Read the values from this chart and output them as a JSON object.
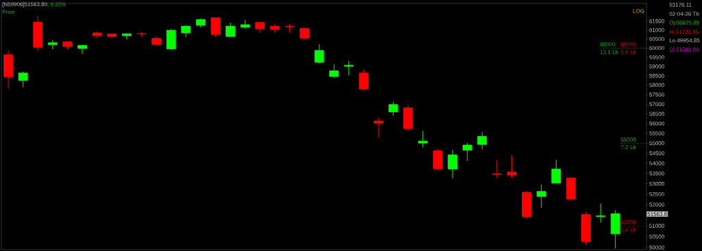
{
  "chart_data": {
    "type": "candlestick",
    "title": "[N59906]51563.80,",
    "subtitle": "0.22%",
    "categories": [
      null,
      null,
      null,
      null,
      null,
      null,
      null,
      null,
      null,
      null,
      null,
      null,
      null,
      null,
      null,
      null,
      null,
      null,
      null,
      null,
      null,
      null,
      null,
      null,
      null,
      null,
      null,
      null,
      null,
      null,
      null,
      null,
      null,
      null,
      null,
      null,
      null,
      null,
      null,
      null,
      null,
      null
    ],
    "ohlc": [
      [
        59640,
        59900,
        57840,
        58450
      ],
      [
        58250,
        58720,
        57880,
        58650
      ],
      [
        61450,
        61790,
        59840,
        60050
      ],
      [
        60190,
        60430,
        59930,
        60290
      ],
      [
        60350,
        60360,
        59930,
        60090
      ],
      [
        59990,
        60170,
        59680,
        60150
      ],
      [
        60840,
        60930,
        60540,
        60690
      ],
      [
        60780,
        60810,
        60580,
        60640
      ],
      [
        60690,
        60810,
        60490,
        60790
      ],
      [
        60800,
        60890,
        60640,
        60780
      ],
      [
        60540,
        60650,
        60100,
        60210
      ],
      [
        59950,
        61040,
        59910,
        60990
      ],
      [
        60840,
        61260,
        60610,
        61220
      ],
      [
        61270,
        61650,
        61150,
        61580
      ],
      [
        61690,
        61720,
        60640,
        60760
      ],
      [
        60640,
        61420,
        60640,
        61220
      ],
      [
        61150,
        61570,
        61060,
        61300
      ],
      [
        61430,
        61450,
        60840,
        61070
      ],
      [
        61220,
        61350,
        60850,
        61040
      ],
      [
        61210,
        61330,
        60840,
        61190
      ],
      [
        61100,
        61120,
        60490,
        60540
      ],
      [
        59230,
        60210,
        59170,
        59870
      ],
      [
        58460,
        59110,
        58420,
        58770
      ],
      [
        59020,
        59300,
        58530,
        59070
      ],
      [
        58650,
        58830,
        57730,
        57800
      ],
      [
        56130,
        56300,
        55290,
        56020
      ],
      [
        56600,
        57130,
        56400,
        56980
      ],
      [
        56810,
        56970,
        55650,
        55740
      ],
      [
        55010,
        55650,
        54790,
        55110
      ],
      [
        54620,
        54700,
        53700,
        53740
      ],
      [
        53720,
        54670,
        53270,
        54420
      ],
      [
        54650,
        55020,
        54130,
        54910
      ],
      [
        54940,
        55580,
        54700,
        55350
      ],
      [
        53490,
        54180,
        53260,
        53460
      ],
      [
        53570,
        54400,
        53320,
        53420
      ],
      [
        52590,
        52660,
        51350,
        51430
      ],
      [
        52390,
        52960,
        51850,
        52630
      ],
      [
        53030,
        54180,
        53020,
        53720
      ],
      [
        53280,
        53320,
        52240,
        52270
      ],
      [
        51530,
        51650,
        50140,
        50270
      ],
      [
        51440,
        52040,
        51150,
        51470
      ],
      [
        50625.65,
        51731.95,
        49954.85,
        51563.8
      ]
    ],
    "colors": [
      "#ff0000",
      "#00ff00",
      "#ff0000",
      "#00ff00",
      "#ff0000",
      "#00ff00",
      "#ff0000",
      "#ff0000",
      "#00ff00",
      "#ff0000",
      "#ff0000",
      "#00ff00",
      "#00ff00",
      "#00ff00",
      "#ff0000",
      "#00ff00",
      "#00ff00",
      "#ff0000",
      "#ff0000",
      "#ff0000",
      "#ff0000",
      "#00ff00",
      "#00ff00",
      "#00ff00",
      "#ff0000",
      "#ff0000",
      "#00ff00",
      "#ff0000",
      "#00ff00",
      "#ff0000",
      "#00ff00",
      "#00ff00",
      "#00ff00",
      "#ff0000",
      "#ff0000",
      "#ff0000",
      "#00ff00",
      "#00ff00",
      "#ff0000",
      "#ff0000",
      "#00ff00",
      "#00ff00"
    ],
    "log": "y",
    "ylim": [
      49900,
      62500
    ],
    "yticks": [
      50000,
      50500,
      51000,
      52000,
      52500,
      53000,
      53500,
      54000,
      54500,
      55000,
      55500,
      56000,
      56500,
      57000,
      57500,
      58000,
      58500,
      59000,
      59500,
      60000,
      60500,
      61000,
      61500
    ],
    "tick_labels": "y",
    "ref_lines": [
      {
        "axis": "y",
        "value": 60000,
        "label": "60000 13.1 Lk",
        "color": "#00b400",
        "line_style": "dotted"
      },
      {
        "axis": "y",
        "value": 60000,
        "label": "60000 5.9 Lk",
        "color": "#c80000",
        "line_style": "dotted"
      },
      {
        "axis": "y",
        "value": 55000,
        "label": "55000 7.2 Lk",
        "color": "#00b400",
        "line_style": "dotted"
      },
      {
        "axis": "y",
        "value": 51000,
        "label": "51000 5.4 Lk",
        "color": "#c80000",
        "line_style": "dotted"
      }
    ],
    "annotations": [
      "Price",
      "LOG",
      "53176.11",
      "02-04-26 Th",
      "Op50625.65",
      "Hi 51731.95",
      "Lo 49954.85",
      "Cl 51563.80",
      "51563.8"
    ]
  }
}
